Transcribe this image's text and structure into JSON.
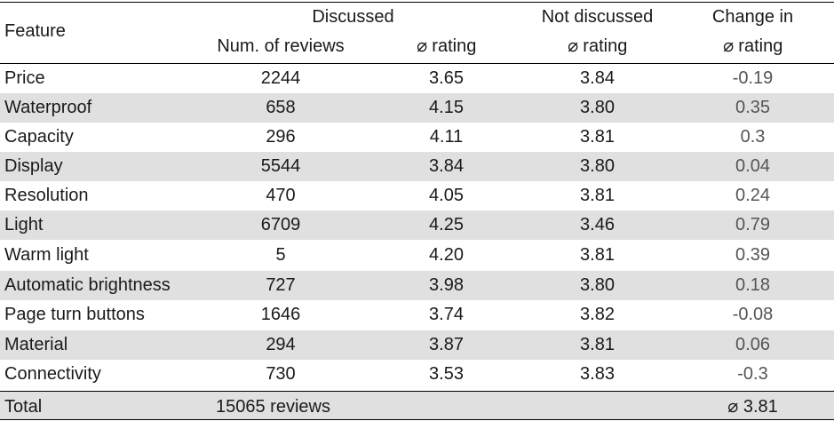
{
  "header": {
    "feature": "Feature",
    "discussed": "Discussed",
    "not_discussed": "Not discussed",
    "change_in": "Change in",
    "num_reviews": "Num. of reviews",
    "avg_symbol": "⌀",
    "rating": "rating"
  },
  "rows": [
    {
      "feature": "Price",
      "num": "2244",
      "rating_disc": "3.65",
      "rating_not": "3.84",
      "change": "-0.19"
    },
    {
      "feature": "Waterproof",
      "num": "658",
      "rating_disc": "4.15",
      "rating_not": "3.80",
      "change": "0.35"
    },
    {
      "feature": "Capacity",
      "num": "296",
      "rating_disc": "4.11",
      "rating_not": "3.81",
      "change": "0.3"
    },
    {
      "feature": "Display",
      "num": "5544",
      "rating_disc": "3.84",
      "rating_not": "3.80",
      "change": "0.04"
    },
    {
      "feature": "Resolution",
      "num": "470",
      "rating_disc": "4.05",
      "rating_not": "3.81",
      "change": "0.24"
    },
    {
      "feature": "Light",
      "num": "6709",
      "rating_disc": "4.25",
      "rating_not": "3.46",
      "change": "0.79"
    },
    {
      "feature": "Warm light",
      "num": "5",
      "rating_disc": "4.20",
      "rating_not": "3.81",
      "change": "0.39"
    },
    {
      "feature": "Automatic brightness",
      "num": "727",
      "rating_disc": "3.98",
      "rating_not": "3.80",
      "change": "0.18"
    },
    {
      "feature": "Page turn buttons",
      "num": "1646",
      "rating_disc": "3.74",
      "rating_not": "3.82",
      "change": "-0.08"
    },
    {
      "feature": "Material",
      "num": "294",
      "rating_disc": "3.87",
      "rating_not": "3.81",
      "change": "0.06"
    },
    {
      "feature": "Connectivity",
      "num": "730",
      "rating_disc": "3.53",
      "rating_not": "3.83",
      "change": "-0.3"
    }
  ],
  "total": {
    "label": "Total",
    "reviews": "15065 reviews",
    "avg": "⌀ 3.81"
  },
  "colors": {
    "shade": "#e0e0e0",
    "text": "#1a1a1a",
    "change_text": "#555555"
  }
}
